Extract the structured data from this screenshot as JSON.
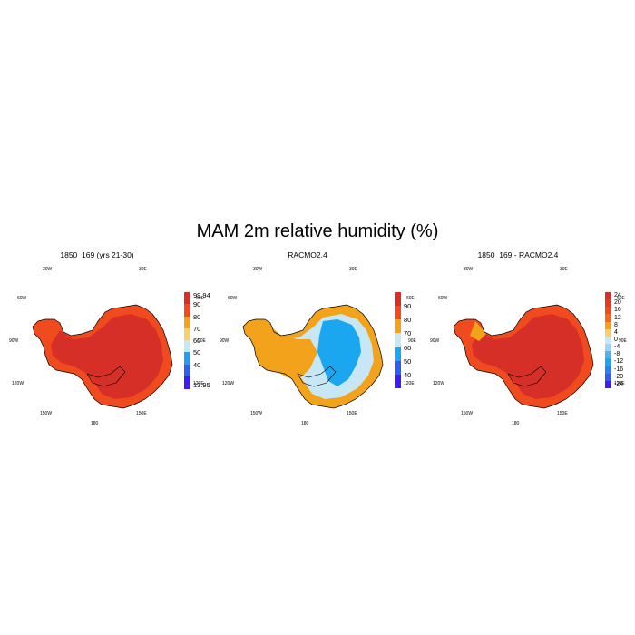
{
  "title": "MAM 2m relative humidity (%)",
  "chart_data": [
    {
      "type": "heatmap",
      "panel_title": "1850_169 (yrs 21-30)",
      "map": "Antarctica polar stereographic",
      "lon_labels": [
        "30W",
        "30E",
        "60W",
        "60E",
        "90W",
        "90E",
        "120W",
        "120E",
        "150W",
        "150E",
        "180"
      ],
      "colorbar": {
        "labels": [
          "99.94",
          "90",
          "80",
          "70",
          "60",
          "50",
          "40",
          "13.95"
        ],
        "colors": [
          "#d62f27",
          "#f04a1f",
          "#f3a21b",
          "#f7cf73",
          "#c7e7f4",
          "#2a9bea",
          "#2f5fe8",
          "#3f1cf0"
        ]
      },
      "dominant_fill": "#d62f27",
      "coast_fill": "#f04a1f"
    },
    {
      "type": "heatmap",
      "panel_title": "RACMO2.4",
      "map": "Antarctica polar stereographic",
      "lon_labels": [
        "30W",
        "30E",
        "60W",
        "60E",
        "90W",
        "90E",
        "120W",
        "120E",
        "150W",
        "150E",
        "180"
      ],
      "colorbar": {
        "labels": [
          "90",
          "80",
          "70",
          "60",
          "50",
          "40"
        ],
        "colors": [
          "#d62f27",
          "#f04a1f",
          "#f3a21b",
          "#c7e7f4",
          "#1aa7f0",
          "#2f5fe8",
          "#3f1cf0"
        ]
      },
      "dominant_fill": "#c7e7f4",
      "coast_fill": "#f3a21b"
    },
    {
      "type": "heatmap",
      "panel_title": "1850_169 - RACMO2.4",
      "map": "Antarctica polar stereographic",
      "lon_labels": [
        "30W",
        "30E",
        "60W",
        "60E",
        "90W",
        "90E",
        "120W",
        "120E",
        "150W",
        "150E",
        "180"
      ],
      "colorbar": {
        "labels": [
          "24",
          "20",
          "16",
          "12",
          "8",
          "4",
          "0",
          "-4",
          "-8",
          "-12",
          "-16",
          "-20",
          "-24"
        ],
        "colors": [
          "#d62f27",
          "#e33c22",
          "#f04a1f",
          "#f36a1c",
          "#f3a21b",
          "#f7cf73",
          "#c7e7f4",
          "#9ed5f1",
          "#4fb4ee",
          "#1aa7f0",
          "#2a83ea",
          "#2f5fe8",
          "#3f1cf0"
        ]
      },
      "dominant_fill": "#d62f27",
      "coast_fill": "#f04a1f"
    }
  ]
}
